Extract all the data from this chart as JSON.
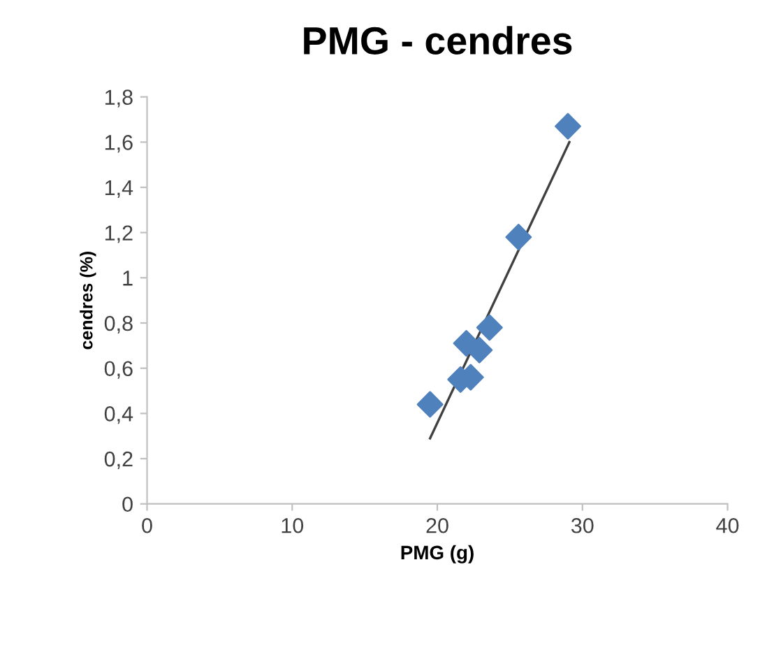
{
  "chart_data": {
    "type": "scatter",
    "title": "PMG - cendres",
    "xlabel": "PMG (g)",
    "ylabel": "cendres (%)",
    "xlim": [
      0,
      40
    ],
    "xticks": [
      0,
      10,
      20,
      30,
      40
    ],
    "ylim": [
      0,
      1.8
    ],
    "yticks": [
      {
        "value": 0,
        "label": "0"
      },
      {
        "value": 0.2,
        "label": "0,2"
      },
      {
        "value": 0.4,
        "label": "0,4"
      },
      {
        "value": 0.6,
        "label": "0,6"
      },
      {
        "value": 0.8,
        "label": "0,8"
      },
      {
        "value": 1,
        "label": "1"
      },
      {
        "value": 1.2,
        "label": "1,2"
      },
      {
        "value": 1.4,
        "label": "1,4"
      },
      {
        "value": 1.6,
        "label": "1,6"
      },
      {
        "value": 1.8,
        "label": "1,8"
      }
    ],
    "grid": false,
    "legend": false,
    "series": [
      {
        "marker": "diamond",
        "color": "#4f81bd",
        "x": [
          19.5,
          21.6,
          22.3,
          22.0,
          22.9,
          23.6,
          25.6,
          29.0
        ],
        "values": [
          0.44,
          0.55,
          0.56,
          0.71,
          0.68,
          0.78,
          1.18,
          1.67
        ]
      },
      {
        "type": "line",
        "color": "#404040",
        "x": [
          19.5,
          29.1
        ],
        "values": [
          0.29,
          1.6
        ]
      }
    ]
  }
}
